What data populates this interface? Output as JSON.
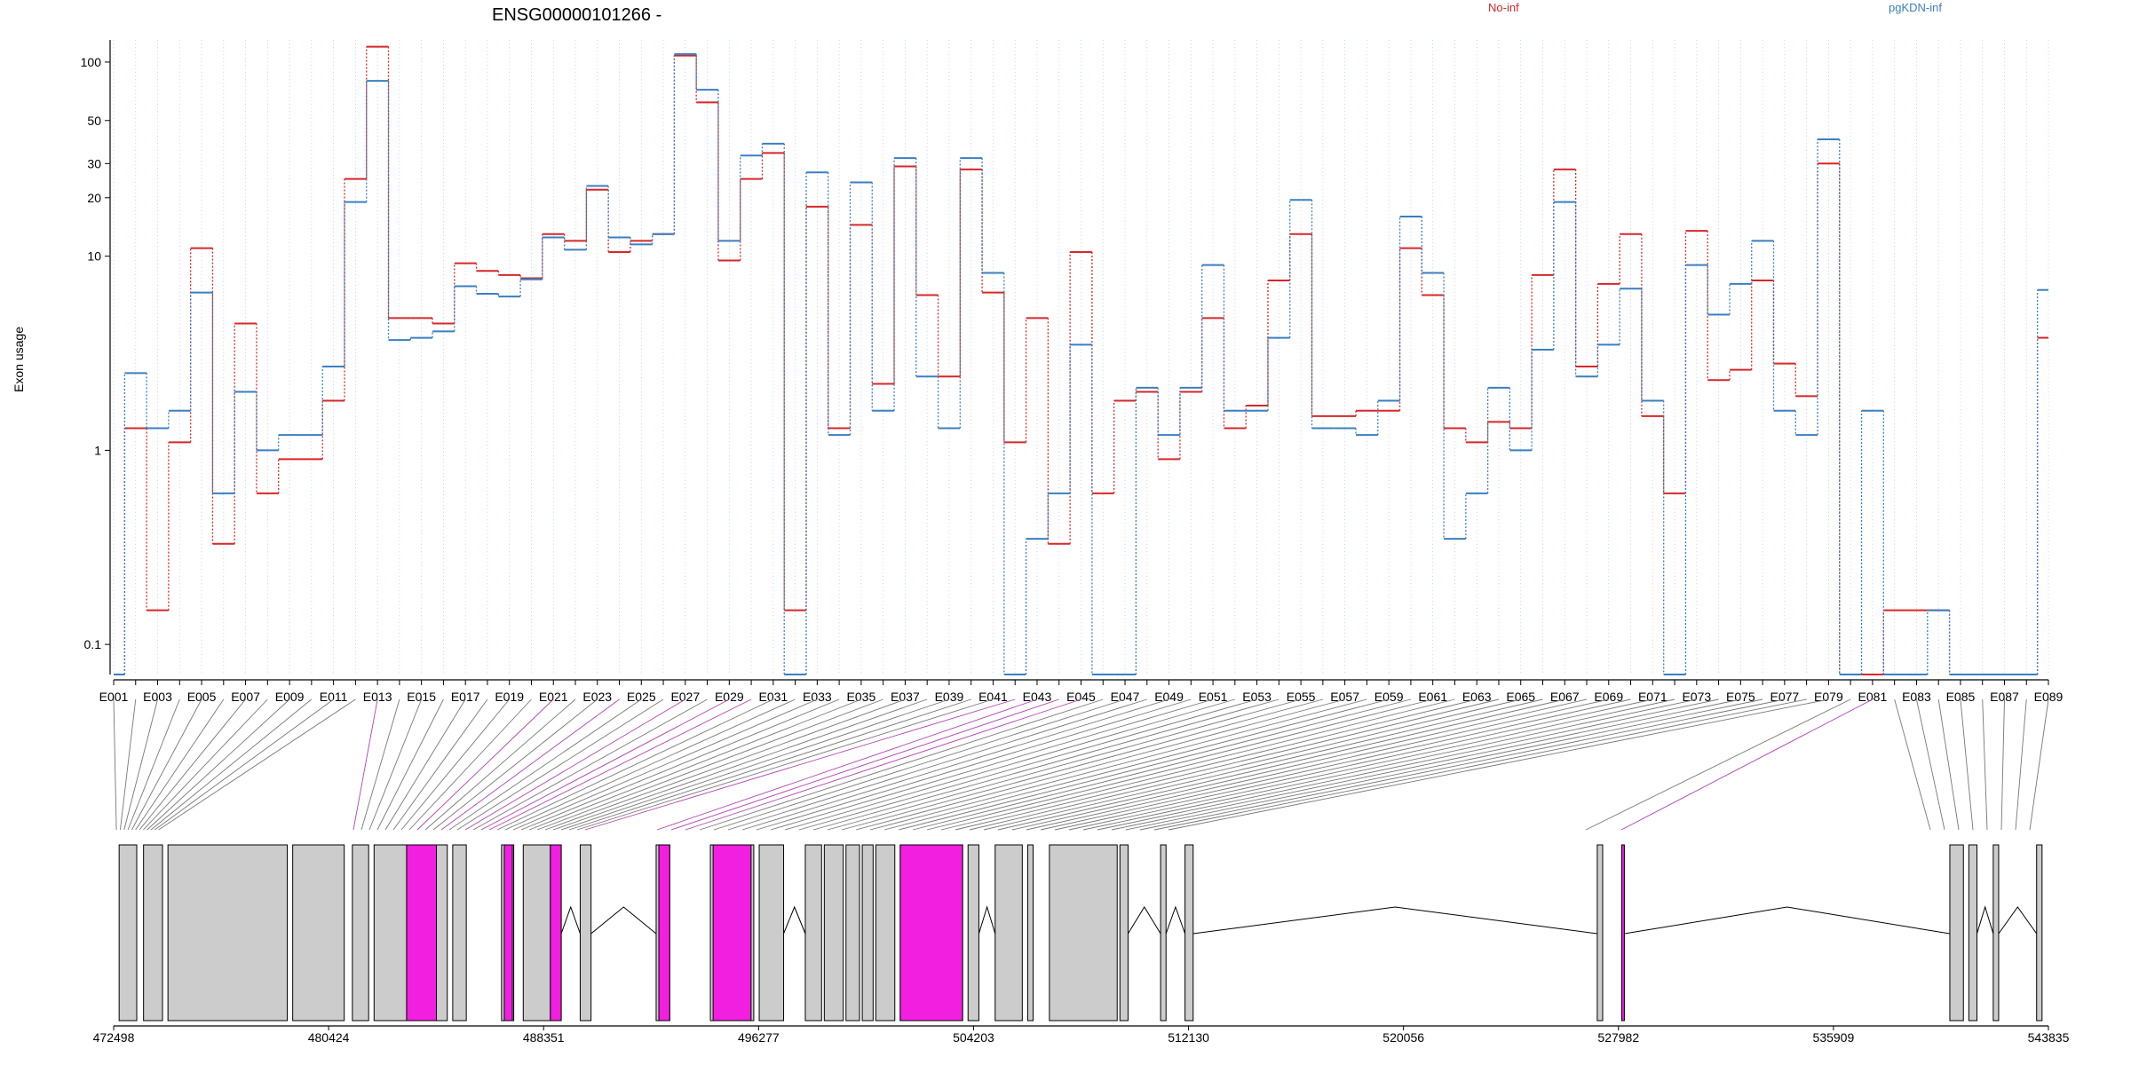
{
  "chart_data": {
    "type": "line",
    "title": "ENSG00000101266 -",
    "ylabel": "Exon usage",
    "yscale": "log",
    "ylim": [
      0.07,
      130
    ],
    "yticks": [
      0.1,
      1,
      10,
      20,
      30,
      50,
      100
    ],
    "ytick_labels": [
      "0.1",
      "1",
      "10",
      "20",
      "30",
      "50",
      "100"
    ],
    "grid": "vertical dotted",
    "legend_placement": "top",
    "exons": [
      "E001",
      "E002",
      "E003",
      "E004",
      "E005",
      "E006",
      "E007",
      "E008",
      "E009",
      "E010",
      "E011",
      "E012",
      "E013",
      "E014",
      "E015",
      "E016",
      "E017",
      "E018",
      "E019",
      "E020",
      "E021",
      "E022",
      "E023",
      "E024",
      "E025",
      "E026",
      "E027",
      "E028",
      "E029",
      "E030",
      "E031",
      "E032",
      "E033",
      "E034",
      "E035",
      "E036",
      "E037",
      "E038",
      "E039",
      "E040",
      "E041",
      "E042",
      "E043",
      "E044",
      "E045",
      "E046",
      "E047",
      "E048",
      "E049",
      "E050",
      "E051",
      "E052",
      "E053",
      "E054",
      "E055",
      "E056",
      "E057",
      "E058",
      "E059",
      "E060",
      "E061",
      "E062",
      "E063",
      "E064",
      "E065",
      "E066",
      "E067",
      "E068",
      "E069",
      "E070",
      "E071",
      "E072",
      "E073",
      "E074",
      "E075",
      "E076",
      "E077",
      "E078",
      "E079",
      "E080",
      "E081",
      "E082",
      "E083",
      "E084",
      "E085",
      "E086",
      "E087",
      "E088",
      "E089"
    ],
    "xtick_labels": [
      "E001",
      "E003",
      "E005",
      "E007",
      "E009",
      "E011",
      "E013",
      "E015",
      "E017",
      "E019",
      "E021",
      "E023",
      "E025",
      "E027",
      "E029",
      "E031",
      "E033",
      "E035",
      "E037",
      "E039",
      "E041",
      "E043",
      "E045",
      "E047",
      "E049",
      "E051",
      "E053",
      "E055",
      "E057",
      "E059",
      "E061",
      "E063",
      "E065",
      "E067",
      "E069",
      "E071",
      "E073",
      "E075",
      "E077",
      "E079",
      "E081",
      "E083",
      "E085",
      "E087",
      "E089"
    ],
    "series": [
      {
        "name": "No-inf",
        "color": "#d62728",
        "values": [
          0.07,
          1.3,
          0.15,
          1.1,
          11,
          0.33,
          4.5,
          0.6,
          0.9,
          0.9,
          1.8,
          25,
          120,
          4.8,
          4.8,
          4.5,
          9.2,
          8.4,
          8.0,
          7.7,
          13,
          12,
          22,
          10.5,
          12,
          13,
          108,
          62,
          9.5,
          25,
          34,
          0.15,
          18,
          1.3,
          14.5,
          2.2,
          29,
          6.3,
          2.4,
          28,
          6.5,
          1.1,
          4.8,
          0.33,
          10.5,
          0.6,
          1.8,
          2.0,
          0.9,
          2.0,
          4.8,
          1.3,
          1.7,
          7.5,
          13,
          1.5,
          1.5,
          1.6,
          1.6,
          11,
          6.3,
          1.3,
          1.1,
          1.4,
          1.3,
          8.0,
          28,
          2.7,
          7.2,
          13,
          1.5,
          0.6,
          13.5,
          2.3,
          2.6,
          7.5,
          2.8,
          1.9,
          30,
          0.07,
          0.07,
          0.15,
          0.15,
          0.15,
          0.07,
          0.07,
          0.07,
          0.07,
          3.8
        ]
      },
      {
        "name": "pgKDN-inf",
        "color": "#3a7fc1",
        "values": [
          0.07,
          2.5,
          1.3,
          1.6,
          6.5,
          0.6,
          2.0,
          1.0,
          1.2,
          1.2,
          2.7,
          19,
          80,
          3.7,
          3.8,
          4.1,
          7.0,
          6.4,
          6.2,
          7.6,
          12.5,
          10.8,
          23,
          12.5,
          11.5,
          13,
          110,
          72,
          12,
          33,
          38,
          0.07,
          27,
          1.2,
          24,
          1.6,
          32,
          2.4,
          1.3,
          32,
          8.2,
          0.07,
          0.35,
          0.6,
          3.5,
          0.07,
          0.07,
          2.1,
          1.2,
          2.1,
          9.0,
          1.6,
          1.6,
          3.8,
          19.5,
          1.3,
          1.3,
          1.2,
          1.8,
          16,
          8.2,
          0.35,
          0.6,
          2.1,
          1.0,
          3.3,
          19,
          2.4,
          3.5,
          6.8,
          1.8,
          0.07,
          9,
          5,
          7.2,
          12,
          1.6,
          1.2,
          40,
          0.07,
          1.6,
          0.07,
          0.07,
          0.15,
          0.07,
          0.07,
          0.07,
          0.07,
          6.7
        ]
      }
    ]
  },
  "gene_model": {
    "axis_ticks": [
      "472498",
      "480424",
      "488351",
      "496277",
      "504203",
      "512130",
      "520056",
      "527982",
      "535909",
      "543835"
    ],
    "axis_values": [
      472498,
      480424,
      488351,
      496277,
      504203,
      512130,
      520056,
      527982,
      535909,
      543835
    ],
    "fill_color": "#cccccc",
    "highlight_color": "#f21ee0",
    "highlighted_exons": [
      "E013",
      "E021",
      "E024",
      "E027",
      "E029",
      "E030",
      "E042",
      "E043",
      "E044",
      "E045",
      "E081"
    ]
  }
}
